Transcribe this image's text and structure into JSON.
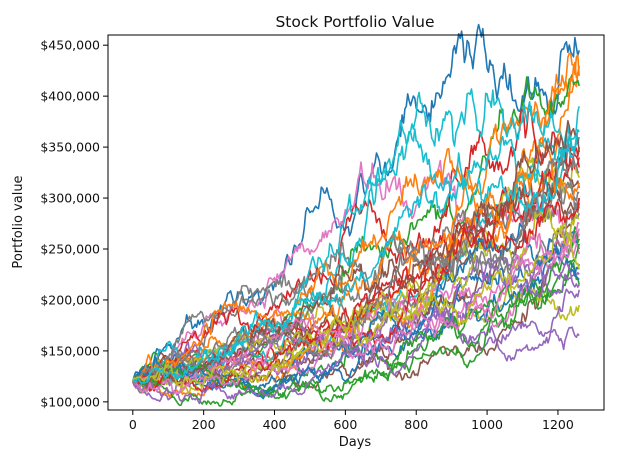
{
  "chart_data": {
    "type": "line",
    "title": "Stock Portfolio Value",
    "xlabel": "Days",
    "ylabel": "Portfolio value",
    "xlim": [
      -70,
      1330
    ],
    "ylim": [
      92000,
      460000
    ],
    "x_ticks": [
      0,
      200,
      400,
      600,
      800,
      1000,
      1200
    ],
    "x_tick_labels": [
      "0",
      "200",
      "400",
      "600",
      "800",
      "1000",
      "1200"
    ],
    "y_ticks": [
      100000,
      150000,
      200000,
      250000,
      300000,
      350000,
      400000,
      450000
    ],
    "y_tick_labels": [
      "$100,000",
      "$150,000",
      "$200,000",
      "$250,000",
      "$300,000",
      "$350,000",
      "$400,000",
      "$450,000"
    ],
    "grid": false,
    "legend": "none",
    "n_days": 1260,
    "start_value": 120000,
    "palette": [
      "#1f77b4",
      "#ff7f0e",
      "#2ca02c",
      "#d62728",
      "#9467bd",
      "#8c564b",
      "#e377c2",
      "#7f7f7f",
      "#bcbd22",
      "#17becf"
    ],
    "series": [
      {
        "final": 445000,
        "min": 118000
      },
      {
        "final": 428000,
        "min": 116000
      },
      {
        "final": 410000,
        "min": 115000
      },
      {
        "final": 340000,
        "min": 117000
      },
      {
        "final": 165000,
        "min": 117000
      },
      {
        "final": 290000,
        "min": 116000
      },
      {
        "final": 265000,
        "min": 118000
      },
      {
        "final": 305000,
        "min": 117000
      },
      {
        "final": 195000,
        "min": 114000
      },
      {
        "final": 390000,
        "min": 118000
      },
      {
        "final": 250000,
        "min": 117000
      },
      {
        "final": 420000,
        "min": 117000
      },
      {
        "final": 215000,
        "min": 108000
      },
      {
        "final": 330000,
        "min": 117000
      },
      {
        "final": 210000,
        "min": 116000
      },
      {
        "final": 300000,
        "min": 118000
      },
      {
        "final": 245000,
        "min": 116000
      },
      {
        "final": 285000,
        "min": 118000
      },
      {
        "final": 320000,
        "min": 117000
      },
      {
        "final": 360000,
        "min": 118000
      },
      {
        "final": 220000,
        "min": 118000
      },
      {
        "final": 430000,
        "min": 118000
      },
      {
        "final": 255000,
        "min": 112000
      },
      {
        "final": 350000,
        "min": 118000
      },
      {
        "final": 225000,
        "min": 115000
      },
      {
        "final": 310000,
        "min": 118000
      },
      {
        "final": 270000,
        "min": 117000
      },
      {
        "final": 295000,
        "min": 118000
      },
      {
        "final": 280000,
        "min": 118000
      },
      {
        "final": 355000,
        "min": 118000
      },
      {
        "final": 235000,
        "min": 118000
      },
      {
        "final": 315000,
        "min": 118000
      },
      {
        "final": 260000,
        "min": 118000
      },
      {
        "final": 300000,
        "min": 118000
      },
      {
        "final": 215000,
        "min": 116000
      },
      {
        "final": 345000,
        "min": 118000
      },
      {
        "final": 275000,
        "min": 118000
      },
      {
        "final": 325000,
        "min": 118000
      },
      {
        "final": 230000,
        "min": 118000
      },
      {
        "final": 365000,
        "min": 118000
      }
    ]
  }
}
